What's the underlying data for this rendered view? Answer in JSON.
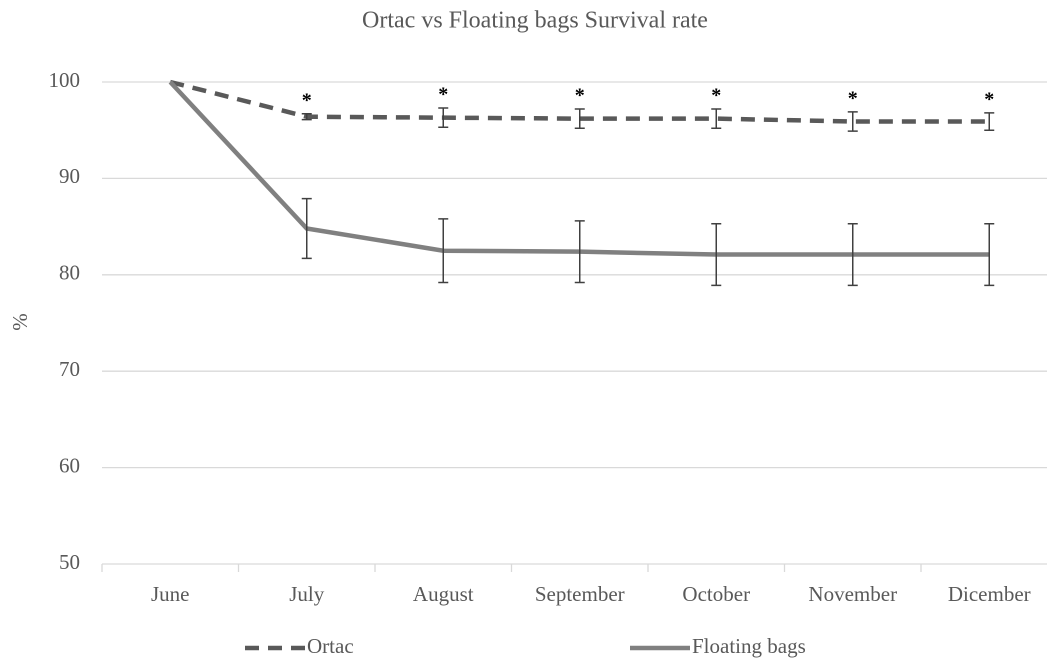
{
  "chart_data": {
    "type": "line",
    "title": "Ortac vs Floating bags Survival rate",
    "y_label": "%",
    "categories": [
      "June",
      "July",
      "August",
      "September",
      "October",
      "November",
      "Dicember"
    ],
    "series": [
      {
        "name": "Ortac",
        "color": "#595959",
        "dash": true,
        "values": [
          100,
          96.4,
          96.3,
          96.2,
          96.2,
          95.9,
          95.9
        ],
        "errors": [
          null,
          0.3,
          1.0,
          1.0,
          1.0,
          1.0,
          0.9
        ]
      },
      {
        "name": "Floating bags",
        "color": "#808080",
        "dash": false,
        "values": [
          100,
          84.8,
          82.5,
          82.4,
          82.1,
          82.1,
          82.1
        ],
        "errors": [
          null,
          3.1,
          3.3,
          3.2,
          3.2,
          3.2,
          3.2
        ]
      }
    ],
    "significance": [
      null,
      "*",
      "*",
      "*",
      "*",
      "*",
      "*"
    ],
    "ylim": [
      50,
      100
    ],
    "yticks": [
      50,
      60,
      70,
      80,
      90,
      100
    ],
    "grid": true,
    "legend": "bottom"
  }
}
